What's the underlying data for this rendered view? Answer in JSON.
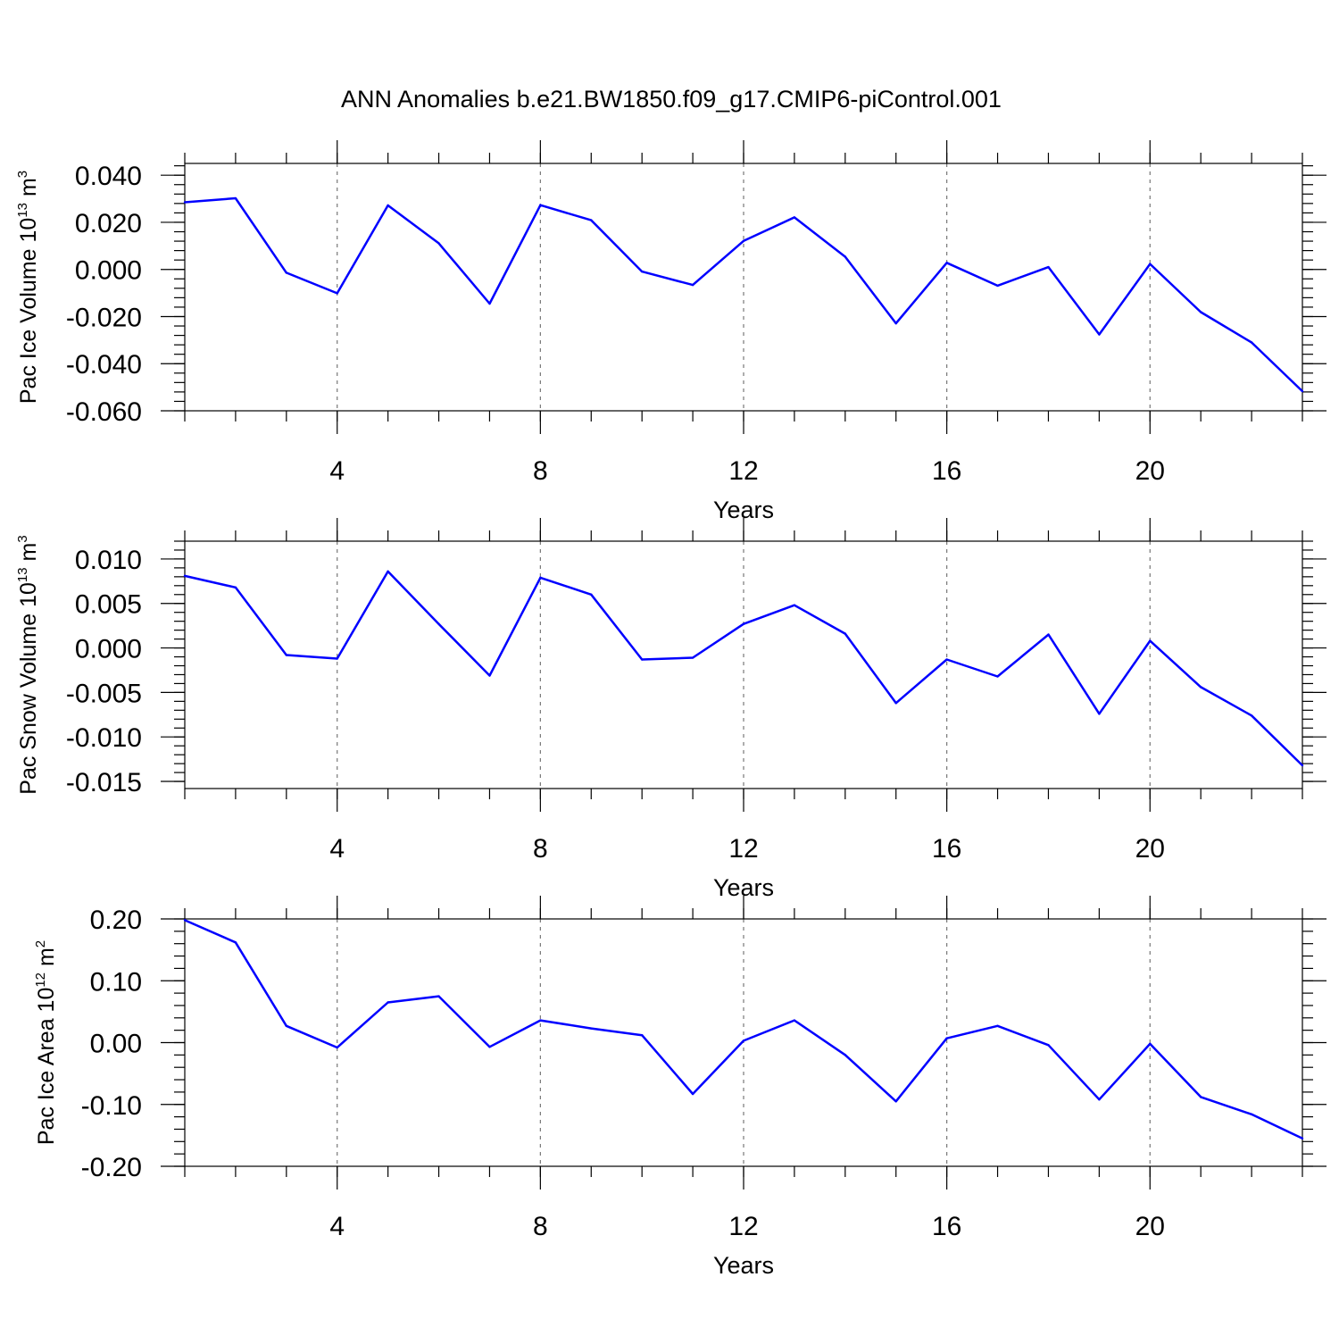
{
  "figure": {
    "title": "ANN Anomalies b.e21.BW1850.f09_g17.CMIP6-piControl.001"
  },
  "chart_data": [
    {
      "type": "line",
      "id": "ice-volume",
      "xlabel": "Years",
      "ylabel_main": "Pac Ice Volume 10",
      "ylabel_exp": "13",
      "ylabel_unit": " m",
      "ylabel_unit_exp": "3",
      "xlim": [
        1,
        23
      ],
      "ylim": [
        -0.06,
        0.045
      ],
      "x_ticks": [
        4,
        8,
        12,
        16,
        20
      ],
      "x_tick_labels": [
        "4",
        "8",
        "12",
        "16",
        "20"
      ],
      "x_minor_step": 1,
      "y_ticks": [
        0.04,
        0.02,
        0.0,
        -0.02,
        -0.04,
        -0.06
      ],
      "y_tick_labels": [
        "0.040",
        "0.020",
        "0.000",
        "-0.020",
        "-0.040",
        "-0.060"
      ],
      "y_minor_step": 0.004,
      "grid": "x-major dashed",
      "color": "#0000ff",
      "x": [
        1,
        2,
        3,
        4,
        5,
        6,
        7,
        8,
        9,
        10,
        11,
        12,
        13,
        14,
        15,
        16,
        17,
        18,
        19,
        20,
        21,
        22,
        23
      ],
      "values": [
        0.0285,
        0.0302,
        -0.0014,
        -0.0101,
        0.0272,
        0.0111,
        -0.0145,
        0.0273,
        0.0209,
        -0.0009,
        -0.0066,
        0.0121,
        0.0221,
        0.0054,
        -0.0229,
        0.0028,
        -0.0069,
        0.001,
        -0.0276,
        0.0023,
        -0.0181,
        -0.031,
        -0.0517
      ]
    },
    {
      "type": "line",
      "id": "snow-volume",
      "xlabel": "Years",
      "ylabel_main": "Pac Snow Volume 10",
      "ylabel_exp": "13",
      "ylabel_unit": " m",
      "ylabel_unit_exp": "3",
      "xlim": [
        1,
        23
      ],
      "ylim": [
        -0.0158,
        0.012
      ],
      "x_ticks": [
        4,
        8,
        12,
        16,
        20
      ],
      "x_tick_labels": [
        "4",
        "8",
        "12",
        "16",
        "20"
      ],
      "x_minor_step": 1,
      "y_ticks": [
        0.01,
        0.005,
        0.0,
        -0.005,
        -0.01,
        -0.015
      ],
      "y_tick_labels": [
        "0.010",
        "0.005",
        "0.000",
        "-0.005",
        "-0.010",
        "-0.015"
      ],
      "y_minor_step": 0.001,
      "grid": "x-major dashed",
      "color": "#0000ff",
      "x": [
        1,
        2,
        3,
        4,
        5,
        6,
        7,
        8,
        9,
        10,
        11,
        12,
        13,
        14,
        15,
        16,
        17,
        18,
        19,
        20,
        21,
        22,
        23
      ],
      "values": [
        0.0081,
        0.0068,
        -0.0008,
        -0.0012,
        0.0086,
        0.0027,
        -0.0031,
        0.0079,
        0.006,
        -0.0013,
        -0.0011,
        0.0027,
        0.0048,
        0.0016,
        -0.0062,
        -0.0013,
        -0.0032,
        0.0015,
        -0.0074,
        0.0008,
        -0.0044,
        -0.0076,
        -0.0132
      ]
    },
    {
      "type": "line",
      "id": "ice-area",
      "xlabel": "Years",
      "ylabel_main": "Pac Ice Area 10",
      "ylabel_exp": "12",
      "ylabel_unit": " m",
      "ylabel_unit_exp": "2",
      "xlim": [
        1,
        23
      ],
      "ylim": [
        -0.2,
        0.2
      ],
      "x_ticks": [
        4,
        8,
        12,
        16,
        20
      ],
      "x_tick_labels": [
        "4",
        "8",
        "12",
        "16",
        "20"
      ],
      "x_minor_step": 1,
      "y_ticks": [
        0.2,
        0.1,
        0.0,
        -0.1,
        -0.2
      ],
      "y_tick_labels": [
        "0.20",
        "0.10",
        "0.00",
        "-0.10",
        "-0.20"
      ],
      "y_minor_step": 0.02,
      "grid": "x-major dashed",
      "color": "#0000ff",
      "x": [
        1,
        2,
        3,
        4,
        5,
        6,
        7,
        8,
        9,
        10,
        11,
        12,
        13,
        14,
        15,
        16,
        17,
        18,
        19,
        20,
        21,
        22,
        23
      ],
      "values": [
        0.198,
        0.162,
        0.027,
        -0.008,
        0.065,
        0.075,
        -0.007,
        0.036,
        0.023,
        0.012,
        -0.083,
        0.003,
        0.036,
        -0.02,
        -0.095,
        0.007,
        0.027,
        -0.004,
        -0.092,
        -0.002,
        -0.088,
        -0.116,
        -0.155
      ]
    }
  ]
}
